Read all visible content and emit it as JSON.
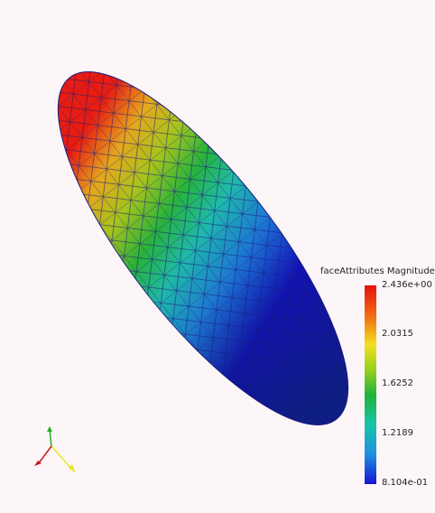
{
  "legend": {
    "title": "faceAttributes Magnitude",
    "ticks": [
      "2.436e+00",
      "2.0315",
      "1.6252",
      "1.2189",
      "8.104e-01"
    ]
  },
  "colormap": {
    "max_color": "#e81010",
    "min_color": "#1616d0",
    "mesh_edge_color": "#1a1a80"
  },
  "axes": {
    "x_color": "#c01818",
    "y_color": "#e8e820",
    "z_color": "#20b020"
  }
}
